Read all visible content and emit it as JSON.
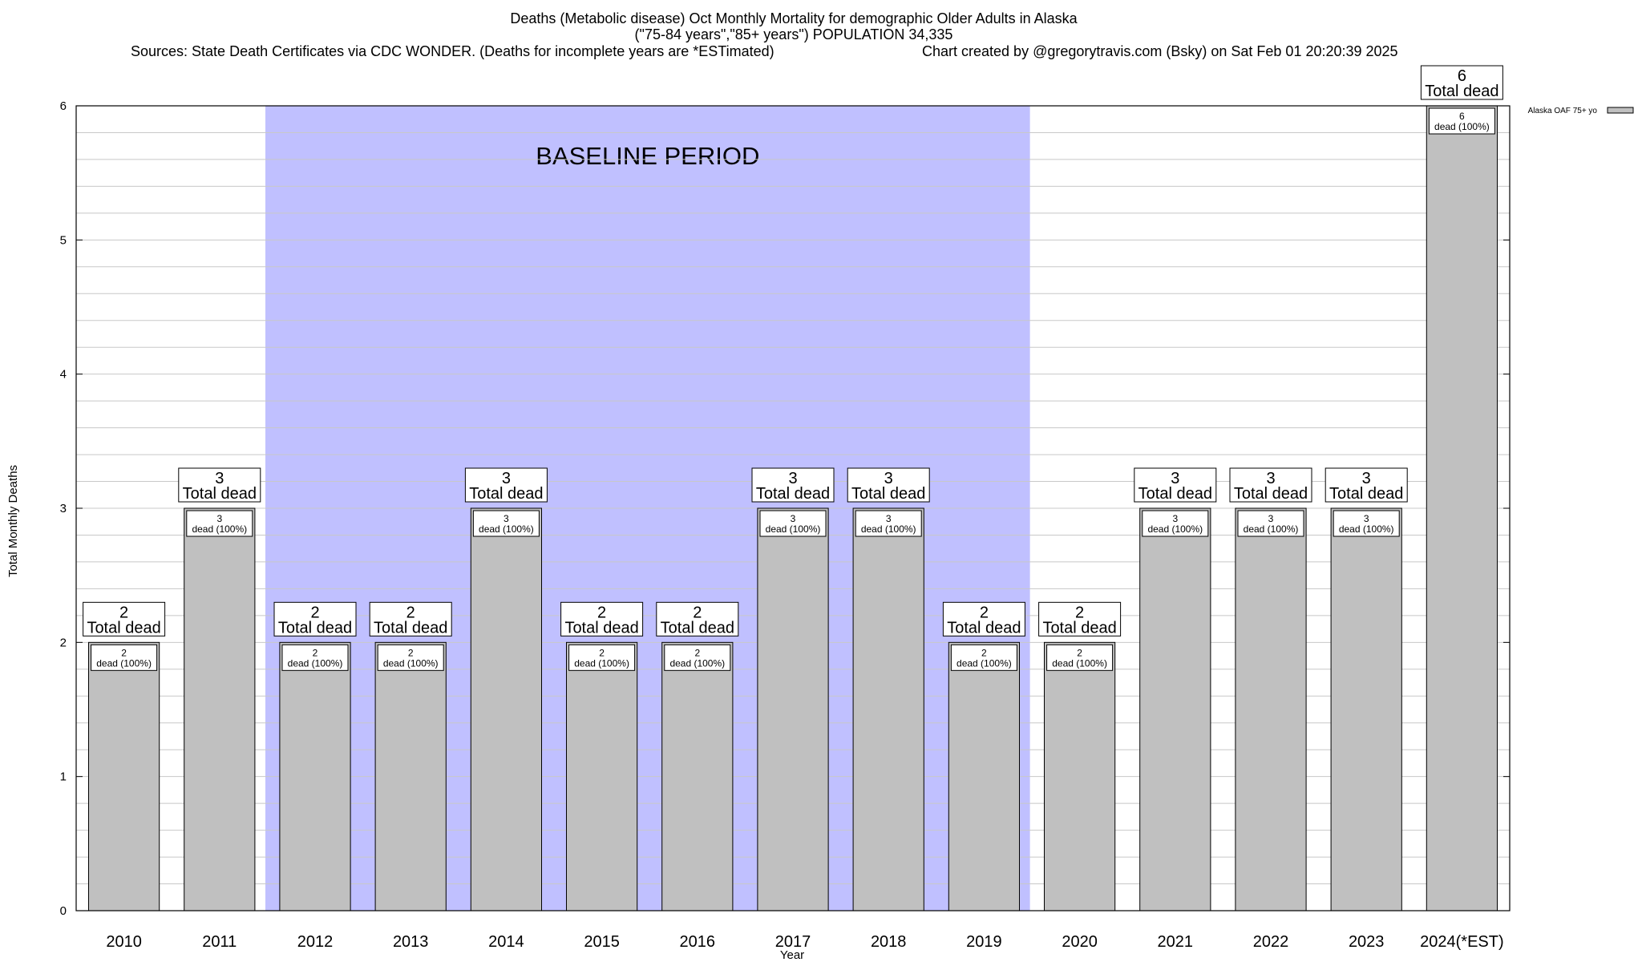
{
  "chart_data": {
    "type": "bar",
    "title_lines": [
      "Deaths (Metabolic disease) Oct Monthly Mortality for demographic Older Adults in Alaska",
      "(\"75-84 years\",\"85+ years\") POPULATION 34,335"
    ],
    "sources_text": "Sources: State Death Certificates via CDC WONDER. (Deaths for incomplete years are *ESTimated)",
    "credit_text": "Chart created by @gregorytravis.com (Bsky) on Sat Feb 01 20:20:39 2025",
    "xlabel": "Year",
    "ylabel": "Total Monthly Deaths",
    "ylim": [
      0,
      6
    ],
    "yticks": [
      0,
      1,
      2,
      3,
      4,
      5,
      6
    ],
    "grid": true,
    "categories": [
      "2010",
      "2011",
      "2012",
      "2013",
      "2014",
      "2015",
      "2016",
      "2017",
      "2018",
      "2019",
      "2020",
      "2021",
      "2022",
      "2023",
      "2024(*EST)"
    ],
    "series": [
      {
        "name": "Alaska OAF 75+ yo",
        "values": [
          2,
          3,
          2,
          2,
          3,
          2,
          2,
          3,
          3,
          2,
          2,
          3,
          3,
          3,
          6
        ]
      }
    ],
    "bar_color": "#c0c0c0",
    "total_label_text": "Total dead",
    "inner_label_text": "dead (100%)",
    "baseline": {
      "label": "BASELINE PERIOD",
      "from": "2012",
      "to": "2019",
      "color": "#c0c0ff"
    },
    "legend_position": "top-right"
  }
}
